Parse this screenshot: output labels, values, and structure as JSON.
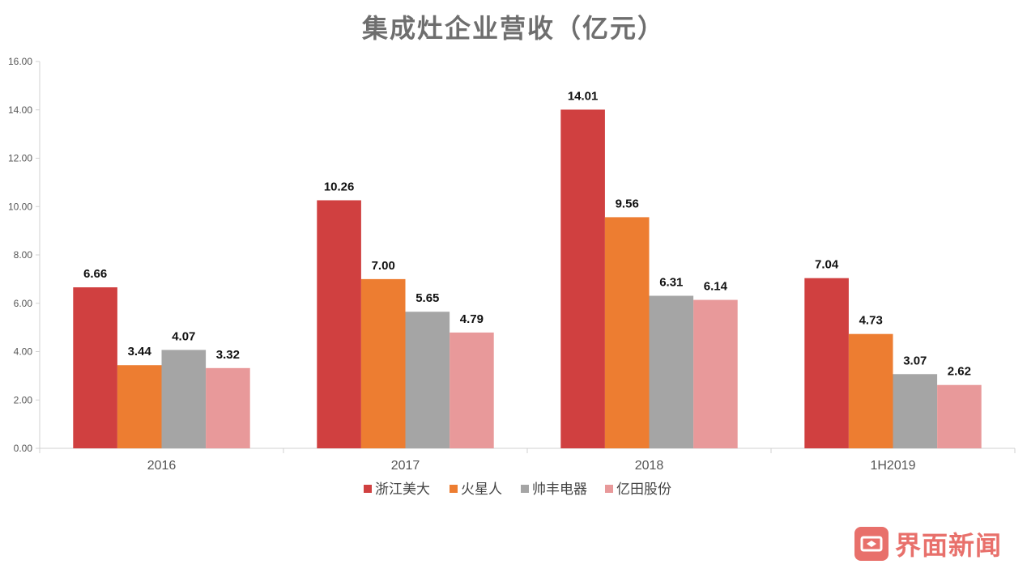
{
  "chart_data": {
    "type": "bar",
    "title": "集成灶企业营收（亿元）",
    "categories": [
      "2016",
      "2017",
      "2018",
      "1H2019"
    ],
    "series": [
      {
        "name": "浙江美大",
        "color": "#d04040",
        "values": [
          6.66,
          10.26,
          14.01,
          7.04
        ]
      },
      {
        "name": "火星人",
        "color": "#ed7d31",
        "values": [
          3.44,
          7.0,
          9.56,
          4.73
        ]
      },
      {
        "name": "帅丰电器",
        "color": "#a5a5a5",
        "values": [
          4.07,
          5.65,
          6.31,
          3.07
        ]
      },
      {
        "name": "亿田股份",
        "color": "#e8999a",
        "values": [
          3.32,
          4.79,
          6.14,
          2.62
        ]
      }
    ],
    "ylim": [
      0,
      16
    ],
    "yticks": [
      "0.00",
      "2.00",
      "4.00",
      "6.00",
      "8.00",
      "10.00",
      "12.00",
      "14.00",
      "16.00"
    ],
    "legend_position": "bottom",
    "grid": false
  },
  "watermark": {
    "text": "界面新闻",
    "color": "#e8706b",
    "icon": "jiemian-logo-icon"
  }
}
